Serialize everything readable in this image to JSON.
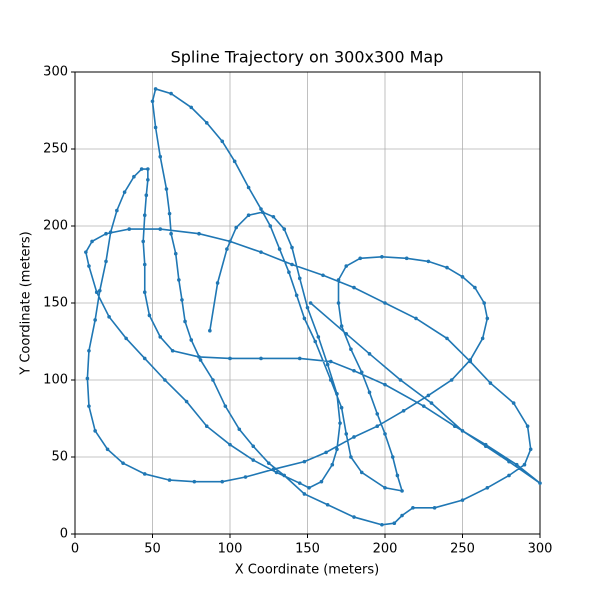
{
  "chart_data": {
    "type": "line",
    "title": "Spline Trajectory on 300x300 Map",
    "x_label": "X Coordinate (meters)",
    "y_label": "Y Coordinate (meters)",
    "xlim": [
      0,
      300
    ],
    "ylim": [
      0,
      300
    ],
    "xticks": [
      0,
      50,
      100,
      150,
      200,
      250,
      300
    ],
    "yticks": [
      0,
      50,
      100,
      150,
      200,
      250,
      300
    ],
    "grid": true,
    "series": [
      {
        "color": "#1f77b4",
        "x": [
          87,
          92,
          98,
          104,
          112,
          121,
          128,
          135,
          140,
          145,
          150,
          157,
          163,
          169,
          171,
          169,
          166,
          159,
          151,
          145,
          130,
          115,
          100,
          85,
          72,
          58,
          45,
          33,
          22,
          14,
          9,
          7,
          11,
          20,
          35,
          55,
          80,
          100,
          120,
          140,
          160,
          180,
          200,
          220,
          240,
          255,
          268,
          283,
          292,
          294,
          290,
          280,
          266,
          250,
          232,
          218,
          211,
          206,
          198,
          180,
          163,
          148,
          135,
          125,
          115,
          106,
          97,
          89,
          81,
          75,
          71,
          69,
          67,
          65,
          62,
          61,
          59,
          55,
          52,
          50,
          52,
          62,
          75,
          85,
          95,
          103,
          112,
          120,
          126,
          132,
          138,
          143,
          148,
          155,
          165,
          172,
          175,
          178,
          185,
          200,
          211,
          208,
          205,
          200,
          195,
          190,
          185,
          178,
          172,
          170,
          170,
          175,
          184,
          198,
          214,
          228,
          240,
          250,
          258,
          264,
          266,
          263,
          255,
          243,
          228,
          212,
          195,
          180,
          162,
          148,
          128,
          110,
          95,
          77,
          61,
          45,
          31,
          21,
          13,
          9,
          8,
          9,
          13,
          16,
          20,
          23,
          27,
          32,
          38,
          43,
          47,
          47,
          46,
          45,
          44,
          45,
          45,
          48,
          55,
          63,
          80,
          100,
          120,
          145,
          165,
          180,
          200,
          225,
          245,
          265,
          285,
          300,
          280,
          265,
          250,
          230,
          210,
          190,
          175,
          152
        ],
        "values": [
          132,
          163,
          185,
          199,
          207,
          209,
          206,
          198,
          186,
          166,
          147,
          128,
          110,
          91,
          72,
          55,
          45,
          34,
          30,
          33,
          40,
          48,
          58,
          70,
          86,
          100,
          114,
          127,
          141,
          157,
          174,
          183,
          190,
          195,
          198,
          198,
          195,
          190,
          183,
          175,
          168,
          160,
          150,
          140,
          127,
          112,
          98,
          85,
          70,
          55,
          45,
          38,
          30,
          22,
          17,
          17,
          12,
          7,
          6,
          11,
          19,
          26,
          38,
          46,
          57,
          68,
          83,
          100,
          113,
          126,
          138,
          152,
          165,
          182,
          195,
          208,
          224,
          245,
          264,
          281,
          289,
          286,
          277,
          267,
          255,
          242,
          225,
          211,
          200,
          185,
          170,
          155,
          140,
          125,
          100,
          82,
          65,
          50,
          40,
          30,
          28,
          38,
          50,
          65,
          78,
          92,
          105,
          120,
          135,
          150,
          165,
          174,
          179,
          180,
          179,
          177,
          173,
          167,
          160,
          150,
          140,
          127,
          113,
          100,
          90,
          80,
          70,
          63,
          53,
          47,
          42,
          37,
          34,
          34,
          35,
          39,
          46,
          55,
          67,
          83,
          101,
          119,
          139,
          158,
          177,
          196,
          210,
          222,
          232,
          237,
          237,
          230,
          220,
          207,
          190,
          175,
          157,
          142,
          128,
          119,
          115,
          114,
          114,
          114,
          112,
          106,
          97,
          83,
          70,
          58,
          45,
          33,
          47,
          57,
          67,
          85,
          100,
          117,
          130,
          150
        ]
      }
    ]
  }
}
